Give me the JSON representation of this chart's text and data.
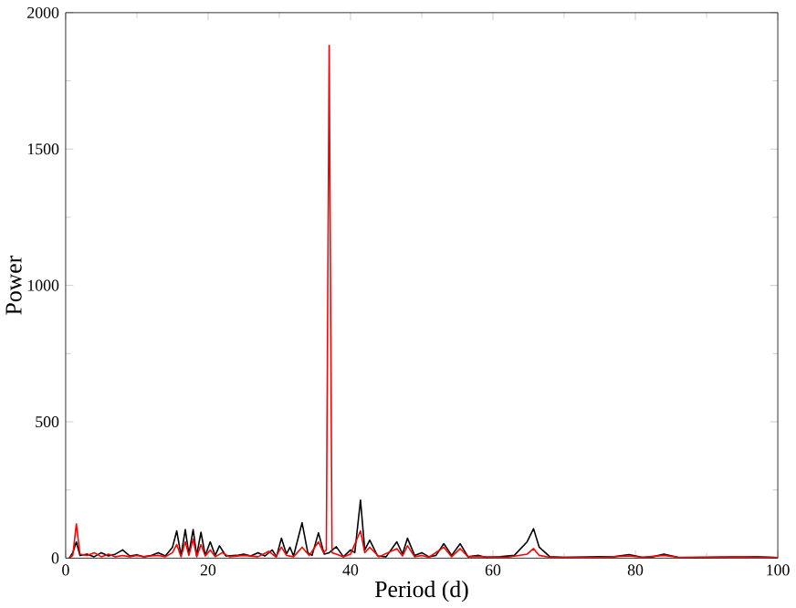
{
  "chart_data": {
    "type": "line",
    "xlabel": "Period (d)",
    "ylabel": "Power",
    "xlim": [
      0,
      100
    ],
    "ylim": [
      0,
      2000
    ],
    "xticks": [
      0,
      20,
      40,
      60,
      80,
      100
    ],
    "yticks": [
      0,
      500,
      1000,
      1500,
      2000
    ],
    "series": [
      {
        "color": "#000000",
        "x": [
          0.5,
          1,
          1.5,
          2,
          3,
          4,
          5,
          6,
          7,
          8,
          9,
          10,
          11,
          12,
          13,
          14,
          15,
          15.6,
          16.2,
          16.8,
          17.3,
          17.9,
          18.4,
          19,
          19.6,
          20.3,
          21,
          21.6,
          22.5,
          24,
          25,
          26,
          27,
          28,
          29,
          29.6,
          30.3,
          31,
          31.5,
          32,
          33.2,
          34,
          34.6,
          35.5,
          36.3,
          37,
          38,
          39,
          40,
          40.6,
          41.4,
          42,
          42.7,
          43.8,
          45,
          46.5,
          47.3,
          48,
          49,
          50,
          51,
          52,
          53.1,
          54.2,
          55.4,
          56.5,
          58,
          59,
          61,
          63,
          64.8,
          65.7,
          66.5,
          68,
          70,
          75,
          77,
          79.1,
          81,
          82.5,
          84,
          86,
          90,
          95,
          97,
          100
        ],
        "values": [
          0,
          20,
          60,
          10,
          15,
          5,
          20,
          8,
          15,
          30,
          8,
          12,
          5,
          10,
          20,
          8,
          40,
          100,
          10,
          105,
          15,
          105,
          10,
          95,
          10,
          60,
          10,
          45,
          8,
          10,
          15,
          8,
          20,
          8,
          30,
          5,
          73,
          15,
          40,
          8,
          130,
          20,
          10,
          93,
          15,
          20,
          42,
          5,
          30,
          20,
          213,
          30,
          66,
          8,
          5,
          60,
          15,
          73,
          10,
          20,
          5,
          10,
          53,
          10,
          53,
          5,
          10,
          3,
          5,
          10,
          60,
          108,
          40,
          5,
          3,
          5,
          5,
          13,
          3,
          5,
          15,
          3,
          2,
          5,
          5,
          2
        ]
      },
      {
        "color": "#ff0000",
        "x": [
          0.5,
          1,
          1.5,
          2,
          3,
          4,
          5,
          6,
          7,
          8,
          9,
          10,
          11,
          12,
          13,
          14,
          15,
          15.6,
          16.2,
          16.8,
          17.3,
          17.9,
          18.4,
          19,
          19.6,
          20.3,
          21,
          22,
          23,
          25,
          27,
          28.5,
          29.5,
          30.3,
          31,
          32,
          33.2,
          34.2,
          35.5,
          36.2,
          36.6,
          37,
          37.4,
          38,
          39,
          40,
          41.4,
          42,
          42.7,
          44,
          46.5,
          47.3,
          48,
          49,
          50,
          51,
          53.1,
          54.2,
          55.4,
          56.5,
          58,
          62,
          64.8,
          65.7,
          66.5,
          68,
          75,
          79.1,
          81,
          84,
          86,
          95,
          100
        ],
        "values": [
          0,
          10,
          126,
          15,
          10,
          20,
          5,
          15,
          5,
          10,
          5,
          10,
          5,
          8,
          10,
          5,
          20,
          50,
          5,
          60,
          10,
          70,
          5,
          50,
          8,
          30,
          5,
          20,
          5,
          10,
          5,
          25,
          5,
          40,
          10,
          5,
          40,
          10,
          60,
          20,
          30,
          1880,
          20,
          15,
          5,
          15,
          100,
          20,
          40,
          5,
          35,
          8,
          45,
          5,
          10,
          3,
          40,
          5,
          35,
          5,
          5,
          3,
          15,
          35,
          10,
          3,
          3,
          8,
          3,
          10,
          3,
          5,
          2
        ]
      }
    ]
  }
}
